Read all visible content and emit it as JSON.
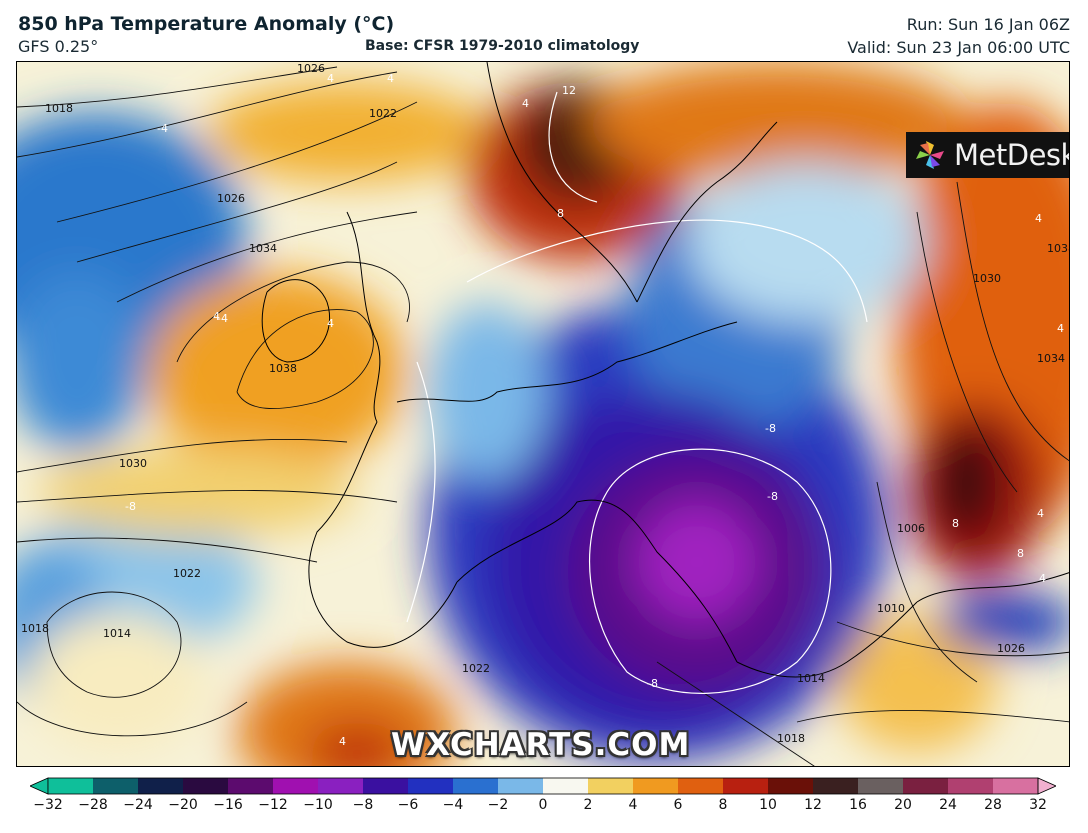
{
  "header": {
    "title": "850 hPa Temperature Anomaly (°C)",
    "model": "GFS 0.25°",
    "base": "Base: CFSR 1979-2010 climatology",
    "run": "Run: Sun 16 Jan 06Z",
    "valid": "Valid: Sun 23 Jan 06:00 UTC"
  },
  "logo": {
    "text": "MetDesk",
    "icon": "metdesk-pinwheel-icon"
  },
  "watermark": "WXCHARTS.COM",
  "colorbar": {
    "ticks": [
      "−32",
      "−28",
      "−24",
      "−20",
      "−16",
      "−12",
      "−10",
      "−8",
      "−6",
      "−4",
      "−2",
      "0",
      "2",
      "4",
      "6",
      "8",
      "10",
      "12",
      "16",
      "20",
      "24",
      "28",
      "32"
    ],
    "colors": [
      "#0fbf9a",
      "#0d5f6a",
      "#10204a",
      "#2a0a40",
      "#5c0b6e",
      "#a010b0",
      "#8a20c0",
      "#3a10a0",
      "#2230c0",
      "#2a70d0",
      "#7ab8e8",
      "#f8f8f0",
      "#f2d060",
      "#f09a20",
      "#e06010",
      "#b82010",
      "#6a1008",
      "#3a2020",
      "#6a6060",
      "#7a2040",
      "#b04070",
      "#d870a0",
      "#f2b0d0"
    ]
  },
  "isobar_labels": [
    "1018",
    "1026",
    "1034",
    "1038",
    "1030",
    "1022",
    "1022",
    "1018",
    "1014",
    "1026",
    "1030",
    "1034",
    "1038",
    "1026",
    "1018",
    "1010",
    "1006",
    "1014",
    "1022",
    "1026"
  ],
  "anomaly_labels": [
    "4",
    "4",
    "-4",
    "12",
    "8",
    "4",
    "4",
    "4",
    "4",
    "-4",
    "-8",
    "-8",
    "-8",
    "8",
    "8",
    "4",
    "4",
    "-8",
    "4",
    "4",
    "4",
    "4"
  ]
}
